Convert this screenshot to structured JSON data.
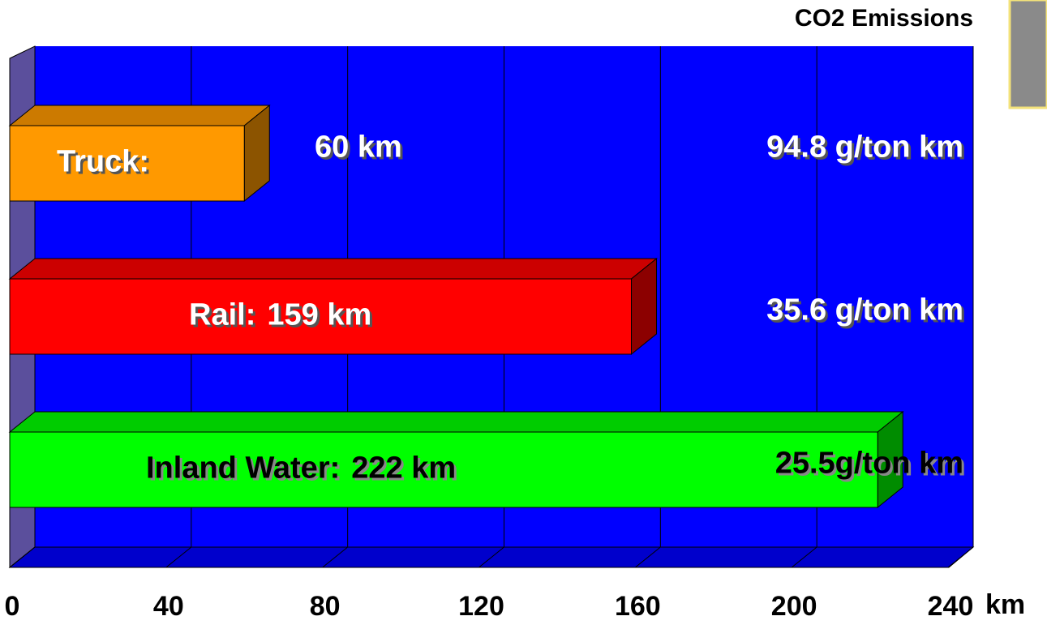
{
  "chart_data": {
    "type": "bar3d_h",
    "subtitle": "CO2 Emissions",
    "x_label": "km",
    "categories": [
      "Truck:",
      "Rail:",
      "Inland Water:"
    ],
    "values": [
      60,
      159,
      222
    ],
    "value_labels": [
      "60 km",
      "159 km",
      "222 km"
    ],
    "colors": [
      "#ff9900",
      "#ff0000",
      "#00ff00"
    ],
    "annotations": [
      "94.8 g/ton km",
      "35.6 g/ton km",
      "25.5g/ton km"
    ],
    "xlim": [
      0,
      240
    ],
    "xticks": [
      0,
      40,
      80,
      120,
      160,
      200,
      240
    ],
    "grid": true
  }
}
